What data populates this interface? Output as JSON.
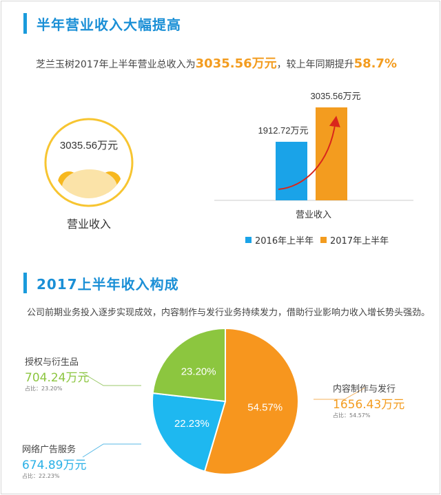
{
  "section1": {
    "title": "半年营业收入大幅提高",
    "summary_prefix": "芝兰玉树2017年上半年营业总收入为",
    "summary_value": "3035.56万元",
    "summary_middle": "，较上年同期提升",
    "summary_growth": "58.7%",
    "circle_value": "3035.56万元",
    "circle_label": "营业收入"
  },
  "section2": {
    "title": "2017上半年收入构成",
    "description": "公司前期业务投入逐步实现成效，内容制作与发行业务持续发力，借助行业影响力收入增长势头强劲。"
  },
  "pie_labels": {
    "licensing": {
      "name": "授权与衍生品",
      "value": "704.24万元",
      "share": "占比：23.20%"
    },
    "ads": {
      "name": "网络广告服务",
      "value": "674.89万元",
      "share": "占比：22.23%"
    },
    "content": {
      "name": "内容制作与发行",
      "value": "1656.43万元",
      "share": "占比：54.57%"
    }
  },
  "colors": {
    "accent": "#1a9bdc",
    "bar_2016": "#1aa3e8",
    "bar_2017": "#f39c1f",
    "pie_orange": "#f7961e",
    "pie_blue": "#1eb8f0",
    "pie_green": "#8cc63f",
    "circle_ring": "#f7c531",
    "arrow": "#d9261c"
  },
  "chart_data": [
    {
      "type": "bar",
      "categories": [
        "营业收入"
      ],
      "series": [
        {
          "name": "2016年上半年",
          "values": [
            1912.72
          ],
          "label": "1912.72万元"
        },
        {
          "name": "2017年上半年",
          "values": [
            3035.56
          ],
          "label": "3035.56万元"
        }
      ],
      "xlabel": "营业收入",
      "ylim": [
        0,
        3035.56
      ],
      "legend": "bottom"
    },
    {
      "type": "pie",
      "slices": [
        {
          "name": "内容制作与发行",
          "value": 54.57,
          "label": "54.57%"
        },
        {
          "name": "网络广告服务",
          "value": 22.23,
          "label": "22.23%"
        },
        {
          "name": "授权与衍生品",
          "value": 23.2,
          "label": "23.20%"
        }
      ]
    }
  ]
}
